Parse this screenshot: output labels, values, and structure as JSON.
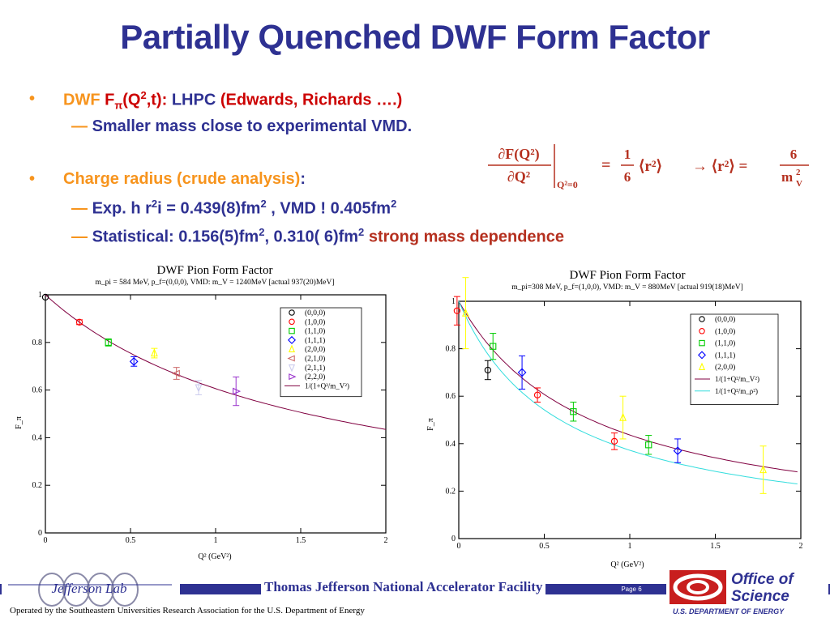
{
  "slide": {
    "title": "Partially Quenched DWF Form Factor",
    "bullet1": {
      "a": "DWF ",
      "b": "F",
      "b_sub": "π",
      "c": "(Q",
      "c_sup": "2",
      "d": ",t): ",
      "e": "LHPC  ",
      "f": "(Edwards, Richards ….)"
    },
    "sub1": {
      "dash": "— ",
      "text": "Smaller mass close to experimental VMD."
    },
    "bullet2": {
      "a": "Charge radius (crude analysis)",
      "b": ":"
    },
    "sub2": {
      "dash": "— ",
      "a": "Exp. h r",
      "a_sup": "2",
      "b": "i = 0.439(8)fm",
      "b_sup": "2",
      "c": " , VMD ! 0.405fm",
      "c_sup": "2"
    },
    "sub3": {
      "dash": "— ",
      "a": "Statistical:  0.156(5)fm",
      "a_sup": "2",
      "b": ", 0.310( 6)fm",
      "b_sup": "2",
      "c": "  strong mass dependence"
    },
    "formula": {
      "lhs_num": "∂F(Q²)",
      "lhs_den": "∂Q²",
      "eval_at": "Q²=0",
      "eq1": "=",
      "frac_num": "1",
      "frac_den": "6",
      "r2": "⟨r²⟩",
      "arrow": "→ ⟨r²⟩ =",
      "rhs_num": "6",
      "rhs_den": "m",
      "rhs_den_sub": "V",
      "rhs_den_sup": "2"
    },
    "bullet_color": "#f7941d",
    "title_color": "#2e3192"
  },
  "footer": {
    "facility": "Thomas Jefferson National Accelerator Facility",
    "page": "Page 6",
    "operated": "Operated by the Southeastern Universities Research Association for the U.S. Department of  Energy",
    "logo_left": "Jefferson Lab",
    "logo_right_1": "Office of",
    "logo_right_2": "Science",
    "logo_right_3": "U.S. DEPARTMENT OF ENERGY"
  },
  "chart_data": [
    {
      "type": "scatter",
      "title": "DWF Pion Form Factor",
      "subtitle": "m_pi = 584 MeV, p_f=(0,0,0), VMD: m_V = 1240MeV [actual 937(20)MeV]",
      "xlabel": "Q² (GeV²)",
      "ylabel": "F_π",
      "xlim": [
        0,
        2
      ],
      "ylim": [
        0,
        1
      ],
      "xticks": [
        "0",
        "0.5",
        "1",
        "1.5",
        "2"
      ],
      "yticks": [
        "0",
        "0.2",
        "0.4",
        "0.6",
        "0.8",
        "1"
      ],
      "legend_position": "top-right",
      "series": [
        {
          "name": "(0,0,0)",
          "marker": "circle",
          "color": "#000000",
          "x": [
            0.0
          ],
          "y": [
            0.99
          ],
          "err": [
            0.0
          ]
        },
        {
          "name": "(1,0,0)",
          "marker": "circle",
          "color": "#ff0000",
          "x": [
            0.2
          ],
          "y": [
            0.885
          ],
          "err": [
            0.01
          ]
        },
        {
          "name": "(1,1,0)",
          "marker": "square",
          "color": "#00cc00",
          "x": [
            0.37
          ],
          "y": [
            0.8
          ],
          "err": [
            0.015
          ]
        },
        {
          "name": "(1,1,1)",
          "marker": "diamond",
          "color": "#0000ff",
          "x": [
            0.52
          ],
          "y": [
            0.72
          ],
          "err": [
            0.02
          ]
        },
        {
          "name": "(2,0,0)",
          "marker": "triangle-up",
          "color": "#ffff00",
          "x": [
            0.64
          ],
          "y": [
            0.755
          ],
          "err": [
            0.02
          ]
        },
        {
          "name": "(2,1,0)",
          "marker": "triangle-left",
          "color": "#cc6666",
          "x": [
            0.77
          ],
          "y": [
            0.67
          ],
          "err": [
            0.025
          ]
        },
        {
          "name": "(2,1,1)",
          "marker": "triangle-down",
          "color": "#ccccee",
          "x": [
            0.9
          ],
          "y": [
            0.61
          ],
          "err": [
            0.03
          ]
        },
        {
          "name": "(2,2,0)",
          "marker": "triangle-right",
          "color": "#9933cc",
          "x": [
            1.12
          ],
          "y": [
            0.595
          ],
          "err": [
            0.06
          ]
        }
      ],
      "curves": [
        {
          "name": "1/(1+Q²/m_V²)",
          "color": "#800040",
          "mV": 1.24,
          "xmax": 2.0
        }
      ]
    },
    {
      "type": "scatter",
      "title": "DWF Pion Form Factor",
      "subtitle": "m_pi=308 MeV, p_f=(1,0,0), VMD: m_V = 880MeV [actual 919(18)MeV]",
      "xlabel": "Q² (GeV²)",
      "ylabel": "F_π",
      "xlim": [
        0,
        2
      ],
      "ylim": [
        0,
        1
      ],
      "xticks": [
        "0",
        "0.5",
        "1",
        "1.5",
        "2"
      ],
      "yticks": [
        "0",
        "0.2",
        "0.4",
        "0.6",
        "0.8",
        "1"
      ],
      "legend_position": "top-right",
      "series": [
        {
          "name": "(0,0,0)",
          "marker": "circle",
          "color": "#000000",
          "x": [
            0.17
          ],
          "y": [
            0.71
          ],
          "err": [
            0.04
          ]
        },
        {
          "name": "(1,0,0)",
          "marker": "circle",
          "color": "#ff0000",
          "x": [
            -0.01,
            0.46,
            0.91
          ],
          "y": [
            0.96,
            0.605,
            0.41
          ],
          "err": [
            0.06,
            0.03,
            0.035
          ]
        },
        {
          "name": "(1,1,0)",
          "marker": "square",
          "color": "#00cc00",
          "x": [
            0.2,
            0.67,
            1.11
          ],
          "y": [
            0.81,
            0.535,
            0.395
          ],
          "err": [
            0.055,
            0.04,
            0.04
          ]
        },
        {
          "name": "(1,1,1)",
          "marker": "diamond",
          "color": "#0000ff",
          "x": [
            0.37,
            1.28
          ],
          "y": [
            0.7,
            0.37
          ],
          "err": [
            0.07,
            0.05
          ]
        },
        {
          "name": "(2,0,0)",
          "marker": "triangle-up",
          "color": "#ffff00",
          "x": [
            0.04,
            0.96,
            1.78
          ],
          "y": [
            0.95,
            0.51,
            0.29
          ],
          "err": [
            0.15,
            0.09,
            0.1
          ]
        }
      ],
      "curves": [
        {
          "name": "1/(1+Q²/m_V²)",
          "color": "#800040",
          "mV": 0.88,
          "xmax": 1.98
        },
        {
          "name": "1/(1+Q²/m_ρ²)",
          "color": "#33dddd",
          "mV": 0.77,
          "xmax": 1.98
        }
      ]
    }
  ]
}
